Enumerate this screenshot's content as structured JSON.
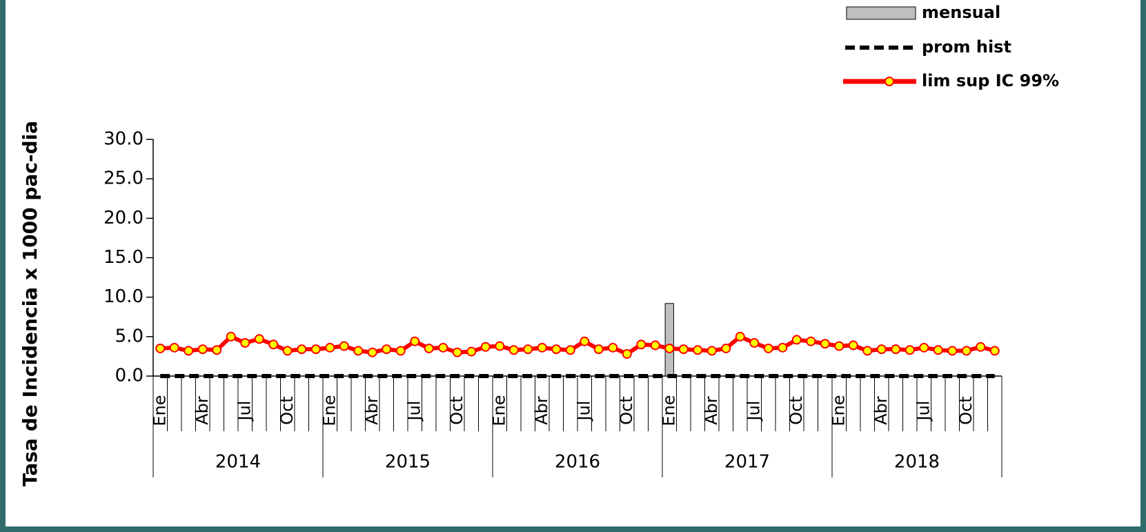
{
  "chart_data": {
    "type": "combo",
    "y_axis_label": "Tasa de Incidencia x 1000 pac-dia",
    "categories": [
      "Ene",
      null,
      null,
      "Abr",
      null,
      null,
      "Jul",
      null,
      null,
      "Oct",
      null,
      null,
      "Ene",
      null,
      null,
      "Abr",
      null,
      null,
      "Jul",
      null,
      null,
      "Oct",
      null,
      null,
      "Ene",
      null,
      null,
      "Abr",
      null,
      null,
      "Jul",
      null,
      null,
      "Oct",
      null,
      null,
      "Ene",
      null,
      null,
      "Abr",
      null,
      null,
      "Jul",
      null,
      null,
      "Oct",
      null,
      null,
      "Ene",
      null,
      null,
      "Abr",
      null,
      null,
      "Jul",
      null,
      null,
      "Oct",
      null,
      null
    ],
    "groups": [
      "2014",
      "2015",
      "2016",
      "2017",
      "2018"
    ],
    "series": [
      {
        "name": "mensual",
        "type": "bar",
        "color": "#bfbfbf",
        "values": [
          0,
          0,
          0,
          0,
          0,
          0,
          0,
          0,
          0,
          0,
          0,
          0,
          0,
          0,
          0,
          0,
          0,
          0,
          0,
          0,
          0,
          0,
          0,
          0,
          0,
          0,
          0,
          0,
          0,
          0,
          0,
          0,
          0,
          0,
          0,
          0,
          9.2,
          0,
          0,
          0,
          0,
          0,
          0,
          0,
          0,
          0,
          0,
          0,
          0,
          0,
          0,
          0,
          0,
          0,
          0,
          0,
          0,
          0,
          0,
          0
        ]
      },
      {
        "name": "prom hist",
        "type": "dashed",
        "color": "#000000",
        "values": [
          0,
          0,
          0,
          0,
          0,
          0,
          0,
          0,
          0,
          0,
          0,
          0,
          0,
          0,
          0,
          0,
          0,
          0,
          0,
          0,
          0,
          0,
          0,
          0,
          0,
          0,
          0,
          0,
          0,
          0,
          0,
          0,
          0,
          0,
          0,
          0,
          0,
          0,
          0,
          0,
          0,
          0,
          0,
          0,
          0,
          0,
          0,
          0,
          0,
          0,
          0,
          0,
          0,
          0,
          0,
          0,
          0,
          0,
          0,
          0
        ]
      },
      {
        "name": "lim sup IC 99%",
        "type": "line",
        "color": "#ff0000",
        "marker_color": "#ffff00",
        "values": [
          3.5,
          3.6,
          3.2,
          3.4,
          3.3,
          5.0,
          4.2,
          4.7,
          4.0,
          3.2,
          3.4,
          3.4,
          3.6,
          3.8,
          3.2,
          3.0,
          3.4,
          3.2,
          4.4,
          3.5,
          3.6,
          3.0,
          3.1,
          3.7,
          3.8,
          3.3,
          3.4,
          3.6,
          3.4,
          3.3,
          4.4,
          3.4,
          3.6,
          2.8,
          4.0,
          3.9,
          3.5,
          3.4,
          3.3,
          3.2,
          3.5,
          5.0,
          4.2,
          3.5,
          3.6,
          4.6,
          4.4,
          4.1,
          3.8,
          3.9,
          3.2,
          3.4,
          3.4,
          3.3,
          3.6,
          3.3,
          3.2,
          3.2,
          3.7,
          3.2
        ]
      }
    ],
    "ylim": [
      0,
      30
    ],
    "yticks": [
      {
        "value": 0,
        "label": "0.0"
      },
      {
        "value": 5,
        "label": "5.0"
      },
      {
        "value": 10,
        "label": "10.0"
      },
      {
        "value": 15,
        "label": "15.0"
      },
      {
        "value": 20,
        "label": "20.0"
      },
      {
        "value": 25,
        "label": "25.0"
      },
      {
        "value": 30,
        "label": "30.0"
      }
    ],
    "legend": "top-right"
  }
}
